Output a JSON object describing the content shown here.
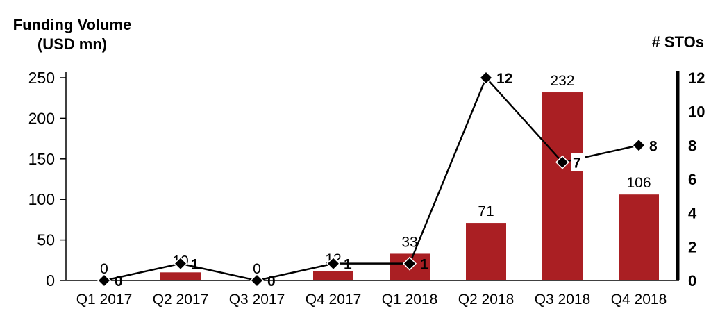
{
  "chart_data": {
    "type": "bar",
    "subtype": "combo-bar-line-dual-axis",
    "title": "",
    "categories": [
      "Q1 2017",
      "Q2 2017",
      "Q3 2017",
      "Q4 2017",
      "Q1 2018",
      "Q2 2018",
      "Q3 2018",
      "Q4 2018"
    ],
    "series": [
      {
        "name": "Funding Volume (USD mn)",
        "type": "bar",
        "axis": "left",
        "values": [
          0,
          10,
          0,
          12,
          33,
          71,
          232,
          106
        ],
        "color": "#AA1F23",
        "data_labels": [
          "0",
          "10",
          "0",
          "12",
          "33",
          "71",
          "232",
          "106"
        ]
      },
      {
        "name": "# STOs",
        "type": "line",
        "axis": "right",
        "values": [
          0,
          1,
          0,
          1,
          1,
          12,
          7,
          8
        ],
        "color": "#000000",
        "marker": "diamond",
        "data_labels": [
          "0",
          "1",
          "0",
          "1",
          "1",
          "12",
          "7",
          "8"
        ],
        "marker_label_bg_indices": [
          6
        ]
      }
    ],
    "left_axis": {
      "title_line1": "Funding Volume",
      "title_line2": "(USD mn)",
      "min": 0,
      "max": 250,
      "step": 50,
      "ticks": [
        0,
        50,
        100,
        150,
        200,
        250
      ]
    },
    "right_axis": {
      "title": "# STOs",
      "min": 0,
      "max": 12,
      "step": 2,
      "ticks": [
        0,
        2,
        4,
        6,
        8,
        10,
        12
      ]
    },
    "grid": false,
    "legend": "none",
    "background": "#FFFFFF"
  }
}
